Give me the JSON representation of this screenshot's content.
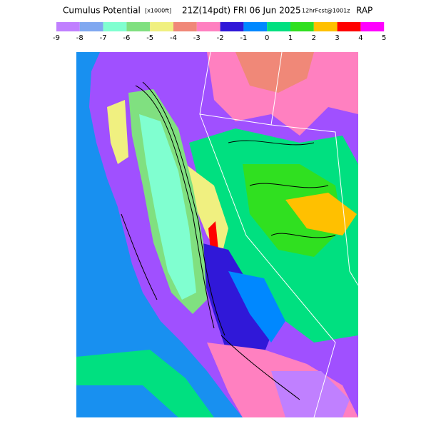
{
  "title": {
    "main": "Cumulus Potential",
    "units": "[x1000ft]",
    "time": "21Z(14pdt) FRI 06 Jun 2025",
    "forecast": "12hrFcst@1001z",
    "model": "RAP"
  },
  "colorbar": {
    "labels": [
      -9,
      -8,
      -7,
      -6,
      -5,
      -4,
      -3,
      -2,
      -1,
      0,
      1,
      2,
      3,
      4,
      5
    ],
    "colors": [
      "#c080ff",
      "#80a8f0",
      "#80ffd0",
      "#80e080",
      "#f0f080",
      "#f08878",
      "#ff80c0",
      "#3018d8",
      "#0088ff",
      "#00e080",
      "#30e020",
      "#ffc000",
      "#ff0000",
      "#ff00ff"
    ]
  }
}
